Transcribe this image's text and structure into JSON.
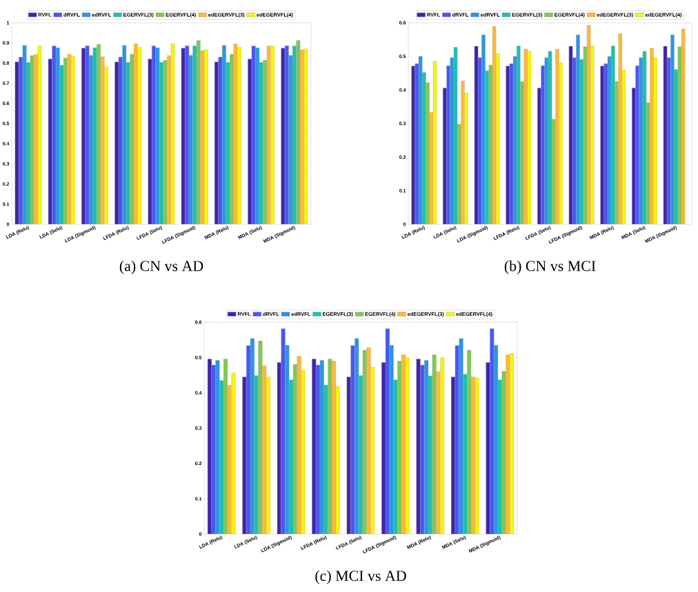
{
  "chart_data": [
    {
      "type": "bar",
      "title": "(a) CN vs AD",
      "legend": "top",
      "ylim": [
        0,
        1
      ],
      "yticks": [
        0,
        0.1,
        0.2,
        0.3,
        0.4,
        0.5,
        0.6,
        0.7,
        0.8,
        0.9,
        1
      ],
      "categories": [
        "LDA (Relu)",
        "LDA (Selu)",
        "LDA (Sigmoid)",
        "LFDA (Relu)",
        "LFDA (Selu)",
        "LFDA (Sigmoid)",
        "MDA (Relu)",
        "MDA (Selu)",
        "MDA (Sigmoid)"
      ],
      "series": [
        {
          "name": "RVFL",
          "color": "#3e26a8",
          "values": [
            0.806,
            0.82,
            0.874,
            0.806,
            0.82,
            0.874,
            0.806,
            0.82,
            0.874
          ]
        },
        {
          "name": "dRVFL",
          "color": "#4a56f2",
          "values": [
            0.83,
            0.885,
            0.886,
            0.83,
            0.885,
            0.886,
            0.83,
            0.885,
            0.886
          ]
        },
        {
          "name": "edRVFL",
          "color": "#2d95e3",
          "values": [
            0.888,
            0.876,
            0.838,
            0.888,
            0.876,
            0.838,
            0.888,
            0.876,
            0.838
          ]
        },
        {
          "name": "EGERVFL(3)",
          "color": "#1ebfb2",
          "values": [
            0.804,
            0.789,
            0.876,
            0.804,
            0.804,
            0.885,
            0.804,
            0.804,
            0.885
          ]
        },
        {
          "name": "EGERVFL(4)",
          "color": "#80c854",
          "values": [
            0.837,
            0.825,
            0.893,
            0.844,
            0.814,
            0.913,
            0.844,
            0.814,
            0.913
          ]
        },
        {
          "name": "edEGERVFL(3)",
          "color": "#fcb83a",
          "values": [
            0.844,
            0.844,
            0.831,
            0.896,
            0.837,
            0.862,
            0.896,
            0.885,
            0.866
          ]
        },
        {
          "name": "edEGERVFL(4)",
          "color": "#f5f40f",
          "values": [
            0.885,
            0.834,
            0.782,
            0.878,
            0.896,
            0.866,
            0.878,
            0.885,
            0.871
          ]
        }
      ]
    },
    {
      "type": "bar",
      "title": "(b) CN vs MCI",
      "legend": "top",
      "ylim": [
        0,
        0.6
      ],
      "yticks": [
        0,
        0.1,
        0.2,
        0.3,
        0.4,
        0.5,
        0.6
      ],
      "categories": [
        "LDA (Relu)",
        "LDA (Selu)",
        "LDA (Sigmoid)",
        "LFDA (Relu)",
        "LFDA (Selu)",
        "LFDA (Sigmoid)",
        "MDA (Relu)",
        "MDA (Selu)",
        "MDA (Sigmoid)"
      ],
      "series": [
        {
          "name": "RVFL",
          "color": "#3e26a8",
          "values": [
            0.471,
            0.406,
            0.53,
            0.471,
            0.406,
            0.53,
            0.471,
            0.406,
            0.53
          ]
        },
        {
          "name": "dRVFL",
          "color": "#4a56f2",
          "values": [
            0.478,
            0.472,
            0.496,
            0.478,
            0.472,
            0.496,
            0.478,
            0.472,
            0.496
          ]
        },
        {
          "name": "edRVFL",
          "color": "#2d95e3",
          "values": [
            0.5,
            0.496,
            0.564,
            0.5,
            0.496,
            0.564,
            0.5,
            0.496,
            0.564
          ]
        },
        {
          "name": "EGERVFL(3)",
          "color": "#1ebfb2",
          "values": [
            0.452,
            0.527,
            0.457,
            0.531,
            0.515,
            0.491,
            0.531,
            0.515,
            0.461
          ]
        },
        {
          "name": "EGERVFL(4)",
          "color": "#80c854",
          "values": [
            0.422,
            0.298,
            0.474,
            0.425,
            0.313,
            0.529,
            0.425,
            0.362,
            0.529
          ]
        },
        {
          "name": "edEGERVFL(3)",
          "color": "#fcb83a",
          "values": [
            0.333,
            0.427,
            0.589,
            0.522,
            0.522,
            0.593,
            0.568,
            0.524,
            0.582
          ]
        },
        {
          "name": "edEGERVFL(4)",
          "color": "#f5f40f",
          "values": [
            0.486,
            0.391,
            0.509,
            0.516,
            0.482,
            0.532,
            0.459,
            0.496,
            null
          ]
        }
      ]
    },
    {
      "type": "bar",
      "title": "(c) MCI vs AD",
      "legend": "top",
      "ylim": [
        0,
        0.6
      ],
      "yticks": [
        0,
        0.1,
        0.2,
        0.3,
        0.4,
        0.5,
        0.6
      ],
      "categories": [
        "LDA (Relu)",
        "LDA (Selu)",
        "LDA (Sigmoid)",
        "LFDA (Relu)",
        "LFDA (Selu)",
        "LFDA (Sigmoid)",
        "MDA (Relu)",
        "MDA (Selu)",
        "MDA (Sigmoid)"
      ],
      "series": [
        {
          "name": "RVFL",
          "color": "#3e26a8",
          "values": [
            0.496,
            0.445,
            0.486,
            0.496,
            0.445,
            0.486,
            0.496,
            0.445,
            0.486
          ]
        },
        {
          "name": "dRVFL",
          "color": "#4a56f2",
          "values": [
            0.479,
            0.534,
            0.582,
            0.479,
            0.534,
            0.582,
            0.479,
            0.534,
            0.582
          ]
        },
        {
          "name": "edRVFL",
          "color": "#2d95e3",
          "values": [
            0.492,
            0.554,
            0.535,
            0.492,
            0.554,
            0.535,
            0.492,
            0.554,
            0.535
          ]
        },
        {
          "name": "EGERVFL(3)",
          "color": "#1ebfb2",
          "values": [
            0.435,
            0.449,
            0.437,
            0.422,
            0.449,
            0.437,
            0.448,
            0.453,
            0.437
          ]
        },
        {
          "name": "EGERVFL(4)",
          "color": "#80c854",
          "values": [
            0.496,
            0.547,
            0.481,
            0.496,
            0.521,
            0.49,
            0.508,
            0.521,
            0.461
          ]
        },
        {
          "name": "edEGERVFL(3)",
          "color": "#fcb83a",
          "values": [
            0.421,
            0.477,
            0.504,
            0.49,
            0.528,
            0.508,
            0.46,
            0.445,
            0.508
          ]
        },
        {
          "name": "edEGERVFL(4)",
          "color": "#f5f40f",
          "values": [
            0.457,
            0.445,
            0.464,
            0.418,
            0.473,
            0.5,
            0.5,
            0.442,
            0.512
          ]
        }
      ]
    }
  ]
}
